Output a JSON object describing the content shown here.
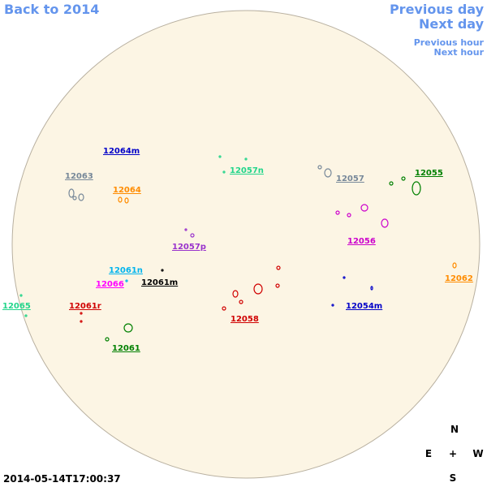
{
  "nav": {
    "back": "Back to 2014",
    "previous_day": "Previous day",
    "next_day": "Next day",
    "previous_hour": "Previous hour",
    "next_hour": "Next hour"
  },
  "regions": [
    {
      "label": "12064m",
      "color": "#0000c8"
    },
    {
      "label": "12063",
      "color": "#778899"
    },
    {
      "label": "12064",
      "color": "#ff8c00"
    },
    {
      "label": "12057n",
      "color": "#22d58a"
    },
    {
      "label": "12057",
      "color": "#778899"
    },
    {
      "label": "12055",
      "color": "#008000"
    },
    {
      "label": "12056",
      "color": "#cc00cc"
    },
    {
      "label": "12057p",
      "color": "#9932cc"
    },
    {
      "label": "12061n",
      "color": "#00b4ee"
    },
    {
      "label": "12066",
      "color": "#ff00ff"
    },
    {
      "label": "12061m",
      "color": "#000000"
    },
    {
      "label": "12065",
      "color": "#22d58a"
    },
    {
      "label": "12061r",
      "color": "#d00000"
    },
    {
      "label": "12062",
      "color": "#ff8c00"
    },
    {
      "label": "12058",
      "color": "#d00000"
    },
    {
      "label": "12054m",
      "color": "#0000c8"
    },
    {
      "label": "12061",
      "color": "#008000"
    }
  ],
  "timestamp": "2014-05-14T17:00:37",
  "compass": {
    "n": "N",
    "e": "E",
    "center": "+",
    "w": "W",
    "s": "S"
  }
}
